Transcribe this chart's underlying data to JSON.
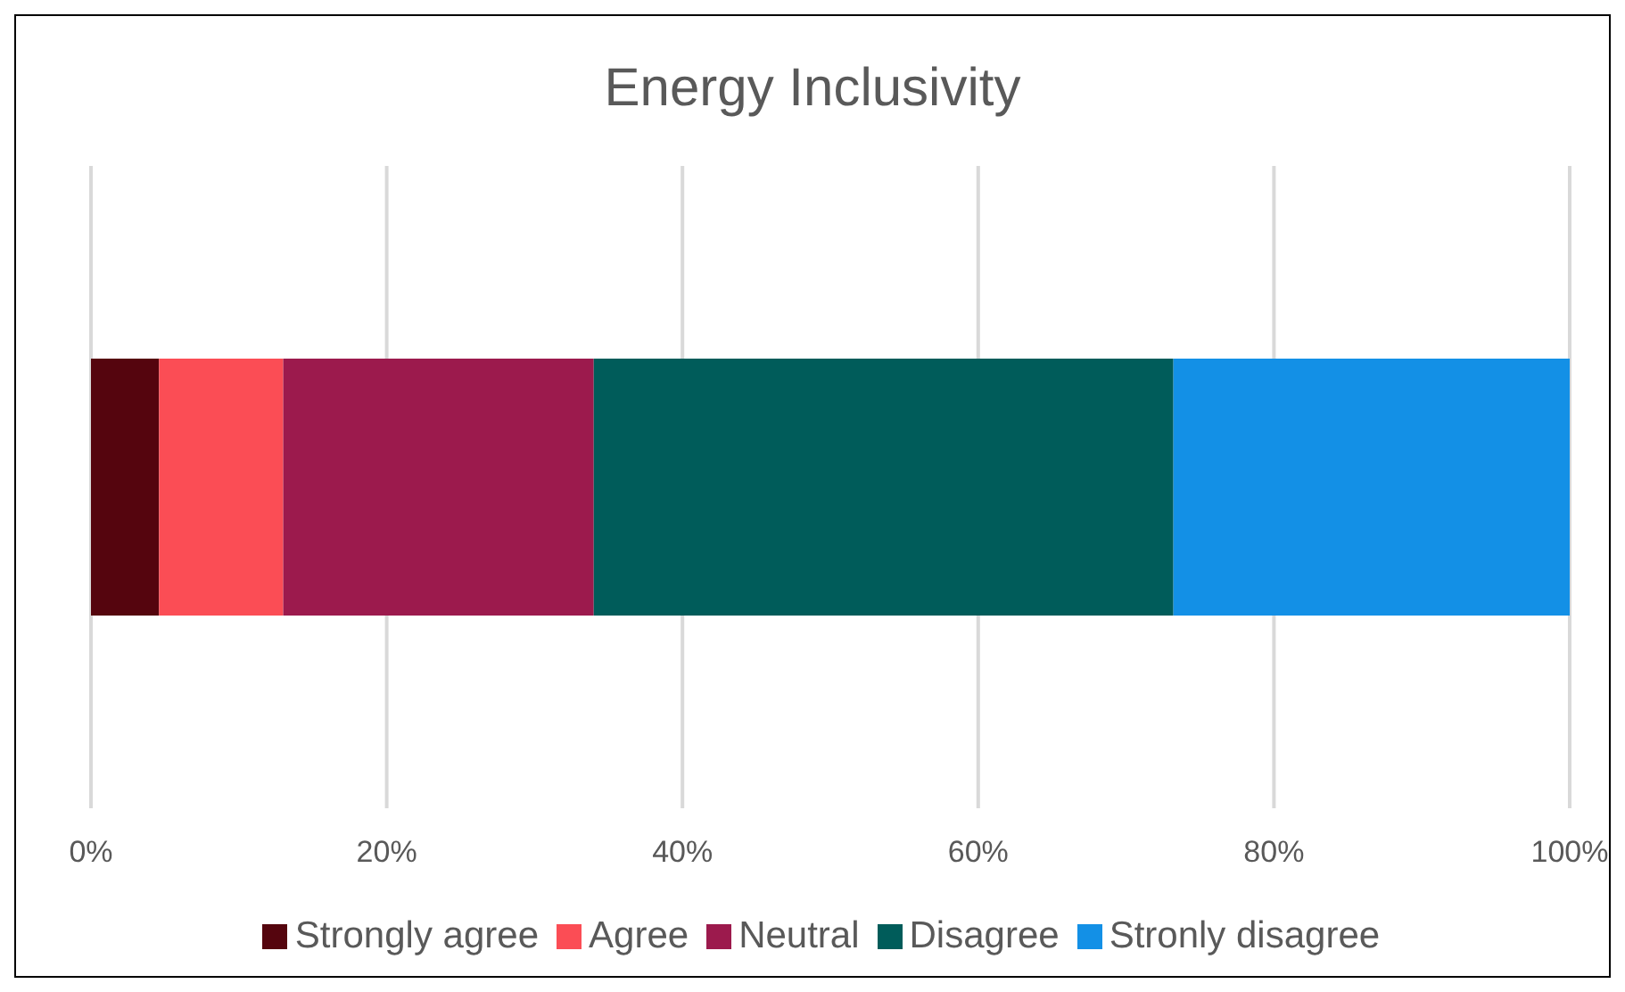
{
  "chart_data": {
    "type": "bar",
    "title": "Energy Inclusivity",
    "orientation": "horizontal",
    "stacked": true,
    "categories": [
      null
    ],
    "series": [
      {
        "name": "Strongly agree",
        "color": "#55050e",
        "values": [
          4.6
        ]
      },
      {
        "name": "Agree",
        "color": "#fb4d55",
        "values": [
          8.4
        ]
      },
      {
        "name": "Neutral",
        "color": "#9c1a4d",
        "values": [
          21.0
        ]
      },
      {
        "name": "Disagree",
        "color": "#005c5a",
        "values": [
          39.2
        ]
      },
      {
        "name": "Stronly disagree",
        "color": "#1390e6",
        "values": [
          26.8
        ]
      }
    ],
    "xlim": [
      0,
      100
    ],
    "xticks": [
      {
        "value": 0,
        "label": "0%"
      },
      {
        "value": 20,
        "label": "20%"
      },
      {
        "value": 40,
        "label": "40%"
      },
      {
        "value": 60,
        "label": "60%"
      },
      {
        "value": 80,
        "label": "80%"
      },
      {
        "value": 100,
        "label": "100%"
      }
    ],
    "grid": "x",
    "legend": "bottom"
  }
}
